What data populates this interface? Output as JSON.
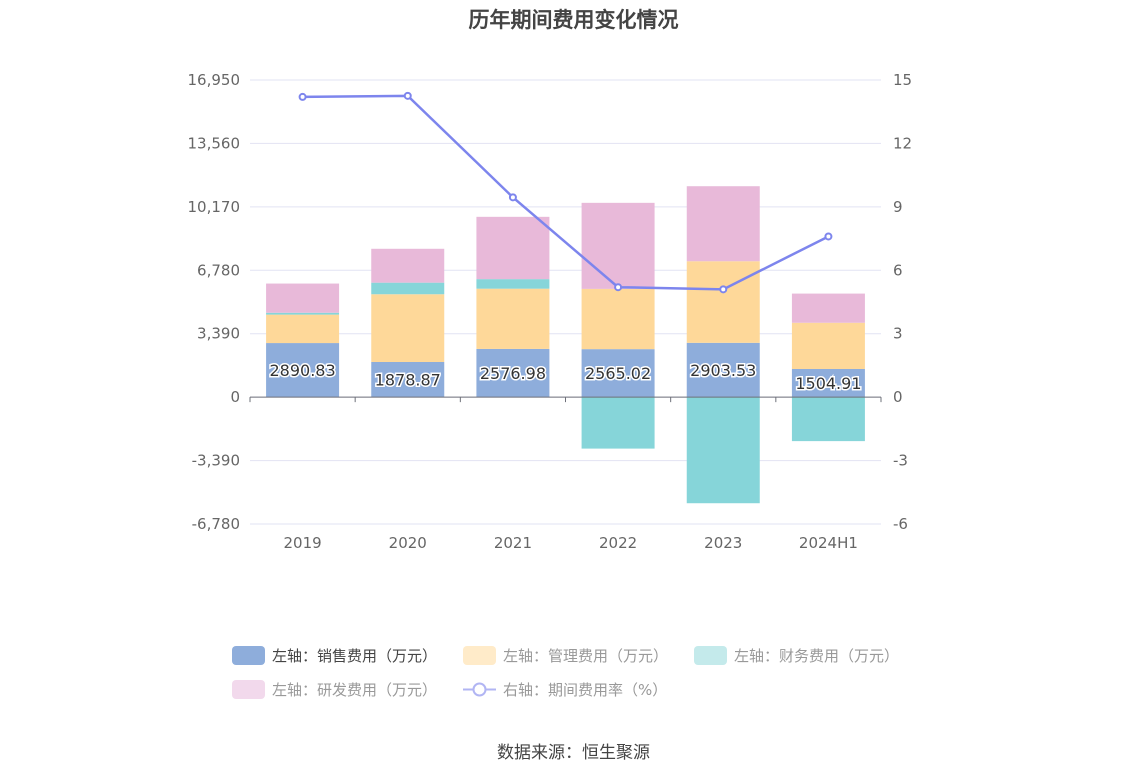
{
  "chart_data": {
    "type": "bar",
    "title": "历年期间费用变化情况",
    "categories": [
      "2019",
      "2020",
      "2021",
      "2022",
      "2023",
      "2024H1"
    ],
    "left_axis": {
      "ticks": [
        "16,950",
        "13,560",
        "10,170",
        "6,780",
        "3,390",
        "0",
        "-3,390",
        "-6,780"
      ],
      "ylim": [
        -6780,
        16950
      ]
    },
    "right_axis": {
      "ticks": [
        "15",
        "12",
        "9",
        "6",
        "3",
        "0",
        "-3",
        "-6"
      ],
      "ylim": [
        -6,
        15
      ]
    },
    "series": [
      {
        "name": "左轴：销售费用（万元）",
        "color": "#8eaddb",
        "values": [
          2890.83,
          1878.87,
          2576.98,
          2565.02,
          2903.53,
          1504.91
        ]
      },
      {
        "name": "左轴：管理费用（万元）",
        "color": "#fed899",
        "values": [
          1520,
          3620,
          3220,
          3220,
          4360,
          2470
        ]
      },
      {
        "name": "左轴：财务费用（万元）",
        "color": "#86d5d9",
        "values": [
          100,
          620,
          510,
          -2750,
          -5670,
          -2350
        ]
      },
      {
        "name": "左轴：研发费用（万元）",
        "color": "#e8b9d9",
        "values": [
          1560,
          1810,
          3330,
          4600,
          4010,
          1560
        ]
      },
      {
        "name": "右轴：期间费用率（%）",
        "color": "#7d85ed",
        "type": "line",
        "axis": "right",
        "values": [
          14.2,
          14.25,
          9.45,
          5.2,
          5.1,
          7.6
        ]
      }
    ],
    "data_labels": [
      "2890.83",
      "1878.87",
      "2576.98",
      "2565.02",
      "2903.53",
      "1504.91"
    ],
    "legend": [
      "左轴：销售费用（万元）",
      "左轴：管理费用（万元）",
      "左轴：财务费用（万元）",
      "左轴：研发费用（万元）",
      "右轴：期间费用率（%）"
    ],
    "source": "数据来源：恒生聚源"
  }
}
